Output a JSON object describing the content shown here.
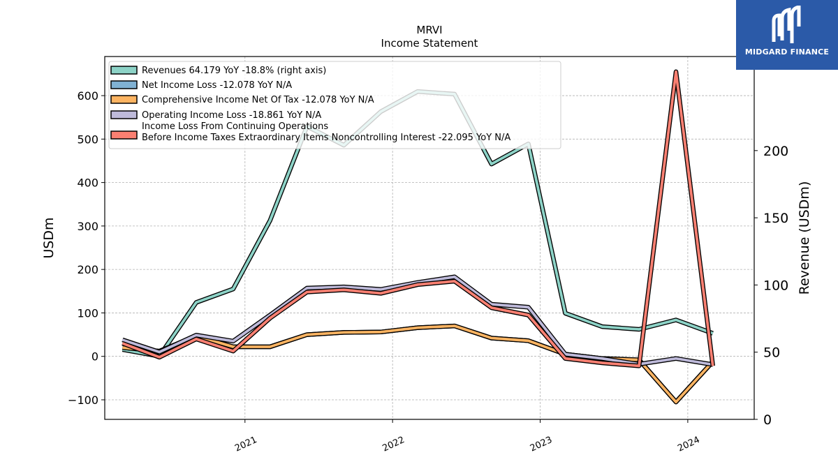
{
  "logo": {
    "text": "MIDGARD FINANCE",
    "icon": "midgard-logo-icon"
  },
  "chart_data": {
    "type": "line",
    "title": "MRVI",
    "subtitle": "Income Statement",
    "ylabel": "USDm",
    "ylabel_right": "Revenue (USDm)",
    "ylim": [
      -145,
      690
    ],
    "ylim_right": [
      0,
      270
    ],
    "yticks": [
      -100,
      0,
      100,
      200,
      300,
      400,
      500,
      600
    ],
    "yticks_right": [
      0,
      50,
      100,
      150,
      200
    ],
    "xlim": [
      2020.05,
      2024.45
    ],
    "xticks": [
      2021,
      2022,
      2023,
      2024
    ],
    "xtick_labels": [
      "2021",
      "2022",
      "2023",
      "2024"
    ],
    "x": [
      2020.17,
      2020.42,
      2020.67,
      2020.92,
      2021.17,
      2021.42,
      2021.67,
      2021.92,
      2022.17,
      2022.42,
      2022.67,
      2022.92,
      2023.17,
      2023.42,
      2023.67,
      2023.92,
      2024.17
    ],
    "grid": true,
    "legend_position": "top-left",
    "series": [
      {
        "name": "Revenues  64.179 YoY -18.8% (right axis)",
        "axis": "right",
        "color": "#8dd3c7",
        "values": [
          52,
          47,
          87,
          97,
          148,
          218,
          204,
          229,
          244,
          242,
          190,
          205,
          79,
          69,
          67,
          74,
          64
        ]
      },
      {
        "name": "Net Income Loss  -12.078 YoY N/A",
        "axis": "left",
        "color": "#80b1d3",
        "values": [
          20,
          12,
          47,
          22,
          22,
          50,
          55,
          56,
          66,
          70,
          42,
          36,
          5,
          -5,
          -8,
          -105,
          -12
        ]
      },
      {
        "name": "Comprehensive Income Net Of Tax  -12.078 YoY N/A",
        "axis": "left",
        "color": "#fdb462",
        "values": [
          20,
          12,
          47,
          22,
          22,
          50,
          55,
          56,
          66,
          70,
          42,
          36,
          5,
          -5,
          -8,
          -105,
          -12
        ]
      },
      {
        "name": "Operating Income Loss  -18.861 YoY N/A",
        "axis": "left",
        "color": "#bebada",
        "values": [
          38,
          10,
          49,
          35,
          95,
          157,
          160,
          154,
          170,
          183,
          120,
          113,
          5,
          -5,
          -18,
          -5,
          -19
        ]
      },
      {
        "name": "Income Loss From Continuing Operations\nBefore Income Taxes Extraordinary Items Noncontrolling Interest  -22.095 YoY N/A",
        "axis": "left",
        "color": "#fb8072",
        "values": [
          30,
          -2,
          40,
          12,
          88,
          148,
          153,
          145,
          165,
          173,
          112,
          95,
          -5,
          -15,
          -22,
          655,
          -22
        ]
      }
    ]
  }
}
